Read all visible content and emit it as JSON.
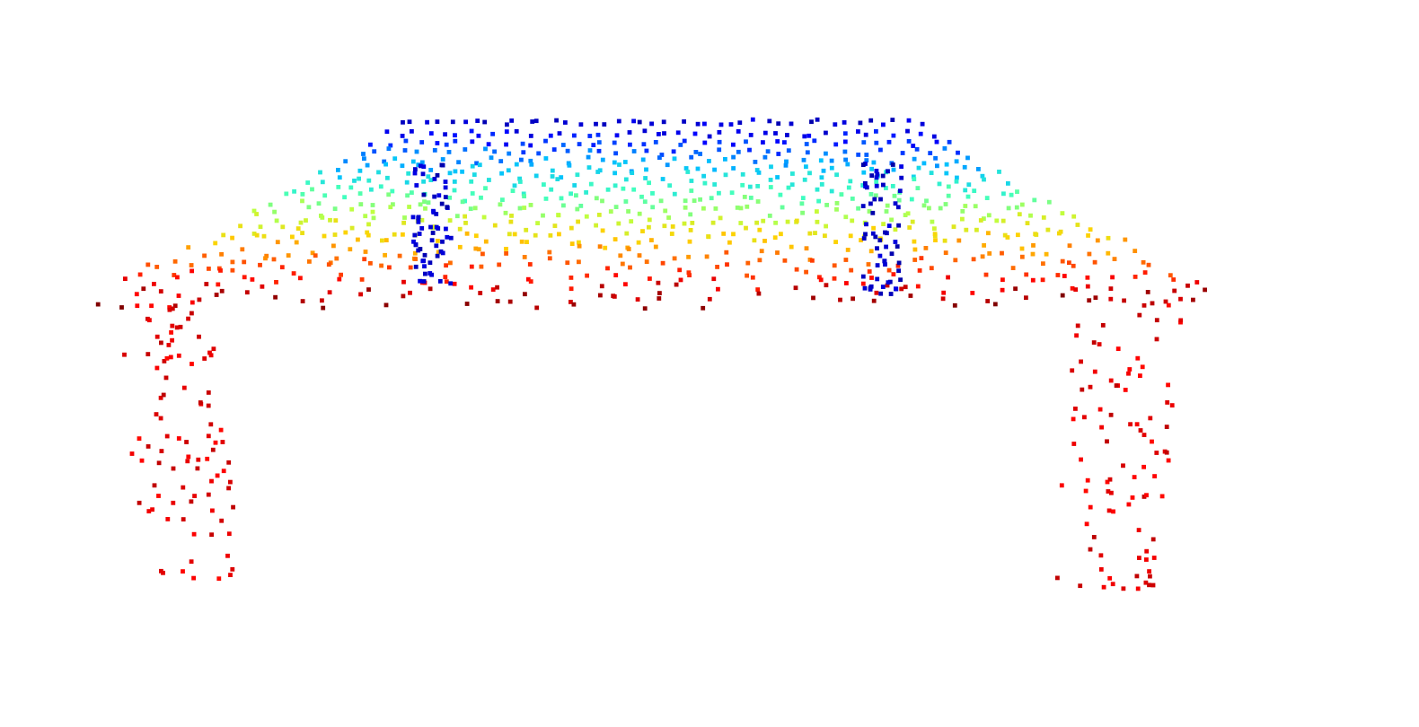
{
  "scene": {
    "object": "table",
    "render_style": "point-cloud",
    "colormap": "jet",
    "background_color": "#ffffff",
    "colormap_stops": [
      "#000080",
      "#0000ff",
      "#00bfff",
      "#40ffbf",
      "#bfff40",
      "#ffd000",
      "#ff6000",
      "#ff0000",
      "#800000"
    ],
    "parts": [
      "tabletop",
      "front-left-leg",
      "front-right-leg",
      "back-left-leg",
      "back-right-leg"
    ]
  }
}
